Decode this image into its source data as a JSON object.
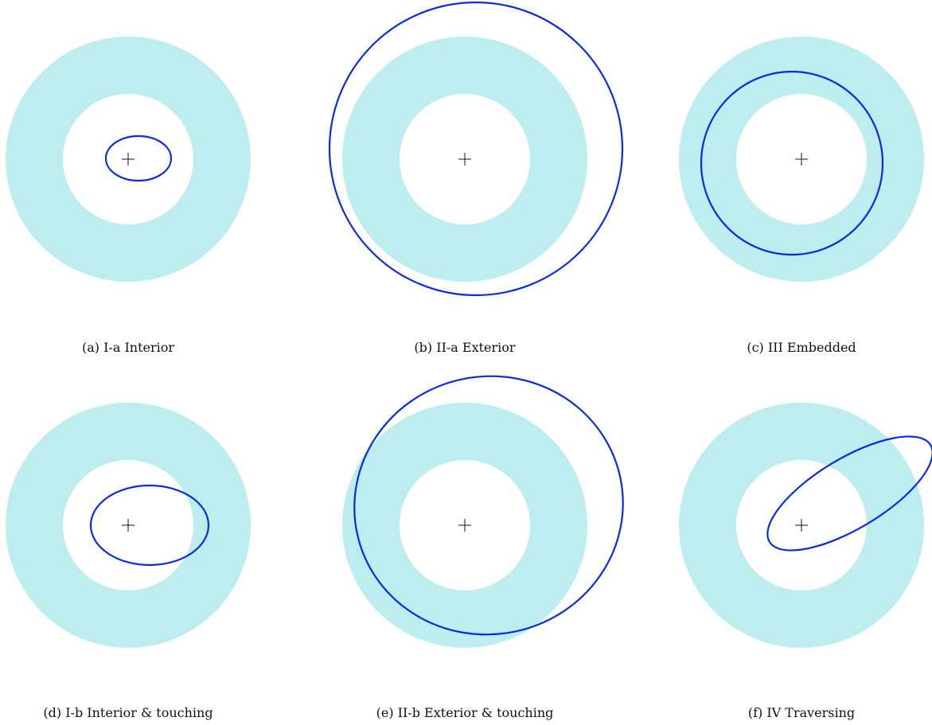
{
  "panels": [
    {
      "id": "a",
      "caption": "(a) I-a Interior"
    },
    {
      "id": "b",
      "caption": "(b) II-a Exterior"
    },
    {
      "id": "c",
      "caption": "(c) III Embedded"
    },
    {
      "id": "d",
      "caption": "(d) I-b Interior & touching"
    },
    {
      "id": "e",
      "caption": "(e) II-b Exterior & touching"
    },
    {
      "id": "f",
      "caption": "(f) IV Traversing"
    }
  ],
  "colors": {
    "annulus": "#bdedee",
    "orbit": "#0a2be6",
    "center_mark": "#111111"
  }
}
